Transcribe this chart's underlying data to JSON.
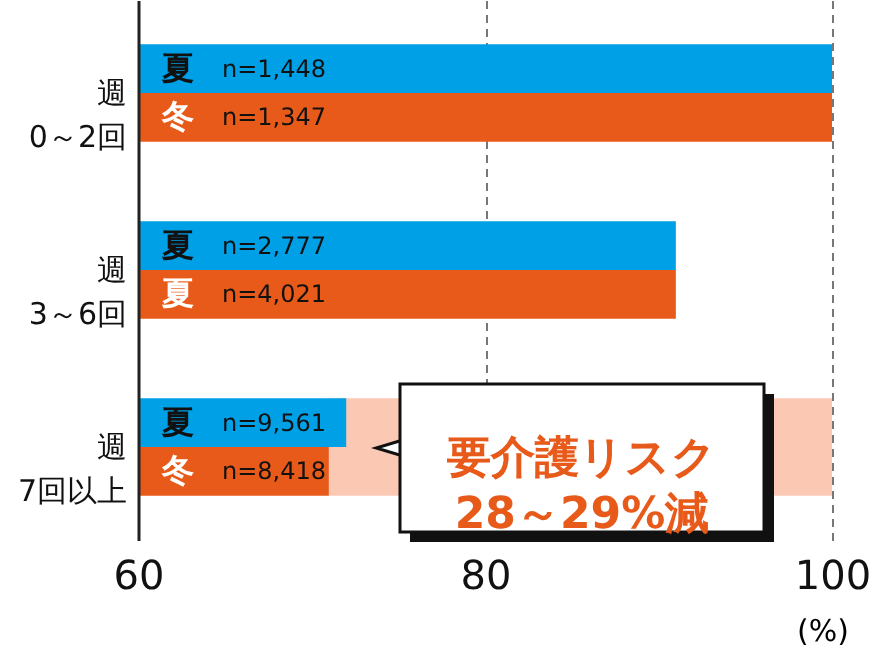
{
  "chart_data": {
    "type": "bar",
    "orientation": "horizontal",
    "categories": [
      "週\n0～2回",
      "週\n3～6回",
      "週\n7回以上"
    ],
    "series": [
      {
        "color": "#00a0e6",
        "values": [
          100,
          91,
          72
        ]
      },
      {
        "color": "#e85a1a",
        "values": [
          100,
          91,
          71
        ]
      }
    ],
    "xlim": [
      60,
      100
    ],
    "xticks": [
      60,
      80,
      100
    ],
    "xlabel": "(%)",
    "grid": "x",
    "bands": [
      {
        "axis": "x",
        "from": 71,
        "to": 100,
        "color": "#fbc8b4"
      }
    ],
    "annotations": [
      "夏",
      "n=1,448",
      "冬",
      "n=1,347",
      "夏",
      "n=2,777",
      "夏",
      "n=4,021",
      "夏",
      "n=9,561",
      "冬",
      "n=8,418",
      "要介護リスク\n28～29%減"
    ]
  }
}
